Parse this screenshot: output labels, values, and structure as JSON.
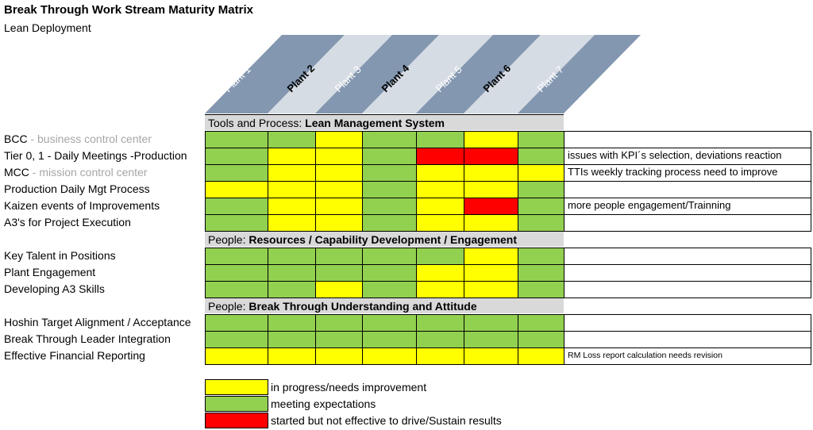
{
  "title": "Break Through Work Stream Maturity Matrix",
  "subtitle": "Lean Deployment",
  "colors": {
    "yellow": "#ffff00",
    "green": "#92d050",
    "red": "#ff0000"
  },
  "plants": [
    "Plant 1",
    "Plant 2",
    "Plant 3",
    "Plant 4",
    "Plant 5",
    "Plant 6",
    "Plant 7"
  ],
  "sections": [
    {
      "prefix": "Tools and Process: ",
      "bold": "Lean Management System"
    },
    {
      "prefix": "People: ",
      "bold": "Resources / Capability Development / Engagement"
    },
    {
      "prefix": "People: ",
      "bold": "Break Through Understanding and Attitude"
    }
  ],
  "rows": [
    {
      "label": "BCC",
      "desc": " - business control center",
      "status": [
        "green",
        "green",
        "yellow",
        "green",
        "green",
        "yellow",
        "green"
      ],
      "comment": ""
    },
    {
      "label": "Tier 0, 1 - Daily Meetings -Production",
      "desc": "",
      "status": [
        "green",
        "yellow",
        "yellow",
        "green",
        "red",
        "red",
        "green"
      ],
      "comment": "issues with KPI´s selection, deviations reaction"
    },
    {
      "label": "MCC",
      "desc": " - mission control center",
      "status": [
        "green",
        "yellow",
        "yellow",
        "green",
        "yellow",
        "yellow",
        "yellow"
      ],
      "comment": "TTIs weekly tracking process need to improve"
    },
    {
      "label": "Production Daily Mgt Process",
      "desc": "",
      "status": [
        "yellow",
        "yellow",
        "yellow",
        "green",
        "yellow",
        "yellow",
        "green"
      ],
      "comment": ""
    },
    {
      "label": "Kaizen events of Improvements",
      "desc": "",
      "status": [
        "green",
        "yellow",
        "yellow",
        "green",
        "yellow",
        "red",
        "green"
      ],
      "comment": "more people engagement/Trainning"
    },
    {
      "label": "A3's for Project Execution",
      "desc": "",
      "status": [
        "green",
        "yellow",
        "yellow",
        "green",
        "yellow",
        "yellow",
        "green"
      ],
      "comment": ""
    },
    {
      "label": "Key Talent in Positions",
      "desc": "",
      "status": [
        "green",
        "green",
        "green",
        "green",
        "green",
        "yellow",
        "green"
      ],
      "comment": ""
    },
    {
      "label": "Plant Engagement",
      "desc": "",
      "status": [
        "green",
        "green",
        "green",
        "green",
        "yellow",
        "yellow",
        "green"
      ],
      "comment": ""
    },
    {
      "label": "Developing A3 Skills",
      "desc": "",
      "status": [
        "green",
        "green",
        "yellow",
        "green",
        "yellow",
        "yellow",
        "green"
      ],
      "comment": ""
    },
    {
      "label": "Hoshin Target Alignment / Acceptance",
      "desc": "",
      "status": [
        "green",
        "green",
        "green",
        "green",
        "green",
        "green",
        "green"
      ],
      "comment": ""
    },
    {
      "label": "Break Through Leader Integration",
      "desc": "",
      "status": [
        "green",
        "green",
        "green",
        "green",
        "green",
        "green",
        "green"
      ],
      "comment": ""
    },
    {
      "label": "Effective Financial Reporting",
      "desc": "",
      "status": [
        "yellow",
        "yellow",
        "yellow",
        "yellow",
        "yellow",
        "yellow",
        "yellow"
      ],
      "comment": "RM Loss report calculation needs revision"
    }
  ],
  "legend": [
    {
      "color": "yellow",
      "label": "in progress/needs improvement"
    },
    {
      "color": "green",
      "label": "meeting expectations"
    },
    {
      "color": "red",
      "label": "started but not effective to drive/Sustain results"
    }
  ]
}
